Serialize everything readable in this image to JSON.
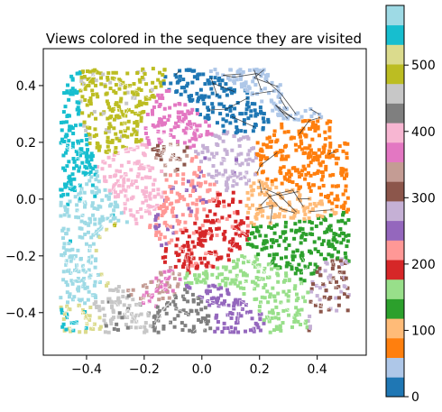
{
  "chart_data": {
    "type": "scatter",
    "title": "Views colored in the sequence they are visited",
    "xlabel": "",
    "ylabel": "",
    "xlim": [
      -0.55,
      0.57
    ],
    "ylim": [
      -0.55,
      0.53
    ],
    "x_ticks": [
      -0.4,
      -0.2,
      0.0,
      0.2,
      0.4
    ],
    "x_tick_labels": [
      "−0.4",
      "−0.2",
      "0.0",
      "0.2",
      "0.4"
    ],
    "y_ticks": [
      0.4,
      0.2,
      0.0,
      -0.2,
      -0.4
    ],
    "y_tick_labels": [
      "0.4",
      "0.2",
      "0.0",
      "−0.2",
      "−0.4"
    ],
    "grid": false,
    "colormap": "tab20",
    "colorbar": {
      "min": 0,
      "max": 590,
      "ticks": [
        0,
        100,
        200,
        300,
        400,
        500
      ],
      "tick_labels": [
        "0",
        "100",
        "200",
        "300",
        "400",
        "500"
      ],
      "colors": [
        "#1f77b4",
        "#aec7e8",
        "#ff7f0e",
        "#ffbb78",
        "#2ca02c",
        "#98df8a",
        "#d62728",
        "#ff9896",
        "#9467bd",
        "#c5b0d5",
        "#8c564b",
        "#c49c94",
        "#e377c2",
        "#f7b6d2",
        "#7f7f7f",
        "#c7c7c7",
        "#bcbd22",
        "#dbdb8d",
        "#17becf",
        "#9edae5"
      ]
    },
    "regions": [
      {
        "order": 0,
        "x": 0.12,
        "y": 0.33,
        "rx": 0.13,
        "ry": 0.07
      },
      {
        "order": 30,
        "x": 0.28,
        "y": 0.38,
        "rx": 0.16,
        "ry": 0.08
      },
      {
        "order": 60,
        "x": 0.38,
        "y": 0.12,
        "rx": 0.14,
        "ry": 0.12
      },
      {
        "order": 95,
        "x": 0.3,
        "y": -0.02,
        "rx": 0.12,
        "ry": 0.08
      },
      {
        "order": 125,
        "x": 0.33,
        "y": -0.17,
        "rx": 0.13,
        "ry": 0.12
      },
      {
        "order": 155,
        "x": 0.2,
        "y": -0.3,
        "rx": 0.14,
        "ry": 0.09
      },
      {
        "order": 190,
        "x": 0.05,
        "y": -0.1,
        "rx": 0.09,
        "ry": 0.11
      },
      {
        "order": 220,
        "x": -0.03,
        "y": 0.03,
        "rx": 0.08,
        "ry": 0.12
      },
      {
        "order": 245,
        "x": 0.1,
        "y": -0.37,
        "rx": 0.1,
        "ry": 0.07
      },
      {
        "order": 265,
        "x": 0.07,
        "y": 0.13,
        "rx": 0.09,
        "ry": 0.08
      },
      {
        "order": 285,
        "x": 0.44,
        "y": -0.3,
        "rx": 0.06,
        "ry": 0.09
      },
      {
        "order": 315,
        "x": -0.1,
        "y": 0.15,
        "rx": 0.06,
        "ry": 0.06
      },
      {
        "order": 345,
        "x": -0.2,
        "y": -0.33,
        "rx": 0.08,
        "ry": 0.05
      },
      {
        "order": 360,
        "x": -0.08,
        "y": 0.25,
        "rx": 0.09,
        "ry": 0.07
      },
      {
        "order": 390,
        "x": -0.22,
        "y": 0.08,
        "rx": 0.08,
        "ry": 0.08
      },
      {
        "order": 420,
        "x": -0.05,
        "y": -0.4,
        "rx": 0.1,
        "ry": 0.05
      },
      {
        "order": 440,
        "x": -0.28,
        "y": -0.38,
        "rx": 0.09,
        "ry": 0.07
      },
      {
        "order": 470,
        "x": -0.33,
        "y": 0.3,
        "rx": 0.1,
        "ry": 0.1
      },
      {
        "order": 500,
        "x": -0.33,
        "y": -0.22,
        "rx": 0.04,
        "ry": 0.11
      },
      {
        "order": 520,
        "x": -0.42,
        "y": -0.42,
        "rx": 0.07,
        "ry": 0.05
      },
      {
        "order": 540,
        "x": -0.45,
        "y": 0.2,
        "rx": 0.05,
        "ry": 0.16
      },
      {
        "order": 560,
        "x": -0.4,
        "y": -0.05,
        "rx": 0.07,
        "ry": 0.09
      },
      {
        "order": 585,
        "x": -0.42,
        "y": -0.28,
        "rx": 0.08,
        "ry": 0.1
      }
    ],
    "obstacle": {
      "x": -0.25,
      "y": -0.2,
      "r": 0.115
    }
  }
}
